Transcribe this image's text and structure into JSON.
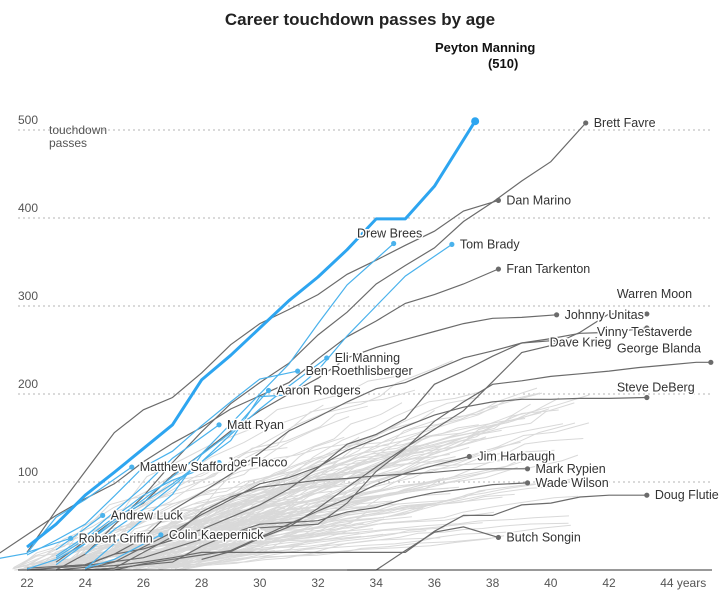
{
  "chart_data": {
    "type": "line",
    "title": "Career touchdown passes by age",
    "ylabel": "touchdown passes",
    "xlabel": "years",
    "xlim": [
      21.8,
      45.5
    ],
    "ylim": [
      0,
      540
    ],
    "xticks": [
      {
        "value": 22,
        "label": "22"
      },
      {
        "value": 24,
        "label": "24"
      },
      {
        "value": 26,
        "label": "26"
      },
      {
        "value": 28,
        "label": "28"
      },
      {
        "value": 30,
        "label": "30"
      },
      {
        "value": 32,
        "label": "32"
      },
      {
        "value": 34,
        "label": "34"
      },
      {
        "value": 36,
        "label": "36"
      },
      {
        "value": 38,
        "label": "38"
      },
      {
        "value": 40,
        "label": "40"
      },
      {
        "value": 42,
        "label": "42"
      },
      {
        "value": 44,
        "label": "44 years"
      }
    ],
    "yticks": [
      {
        "value": 100,
        "label": "100"
      },
      {
        "value": 200,
        "label": "200"
      },
      {
        "value": 300,
        "label": "300"
      },
      {
        "value": 400,
        "label": "400"
      },
      {
        "value": 500,
        "label": "500"
      }
    ],
    "y_unit_label": [
      "touchdown",
      "passes"
    ],
    "grid": true,
    "colors": {
      "highlight": "#2da5f0",
      "active": "#4ab2ec",
      "retired": "#6b6b6b",
      "background": "#d6d6d6"
    },
    "highlight": {
      "name": "Peyton Manning",
      "value_label": "(510)",
      "x": [
        22,
        23,
        24,
        25,
        26,
        27,
        28,
        29,
        30,
        31,
        32,
        33,
        34,
        35,
        36,
        37.4
      ],
      "y": [
        26,
        52,
        85,
        111,
        138,
        165,
        216,
        244,
        275,
        306,
        333,
        364,
        399,
        399,
        436,
        510
      ]
    },
    "series": [
      {
        "name": "Brett Favre",
        "group": "retired",
        "x": [
          22,
          23,
          24,
          25,
          26,
          27,
          28,
          29,
          30,
          31,
          32,
          33,
          34,
          35,
          36,
          37,
          38,
          39,
          40,
          41.2
        ],
        "y": [
          0,
          0,
          18,
          51,
          84,
          122,
          157,
          189,
          213,
          235,
          267,
          293,
          325,
          346,
          366,
          396,
          418,
          442,
          464,
          508
        ]
      },
      {
        "name": "Dan Marino",
        "group": "retired",
        "x": [
          22,
          23,
          24,
          25,
          26,
          27,
          28,
          29,
          30,
          31,
          32,
          33,
          34,
          35,
          36,
          37,
          38.2
        ],
        "y": [
          20,
          68,
          112,
          156,
          182,
          196,
          224,
          256,
          280,
          296,
          313,
          336,
          352,
          369,
          385,
          408,
          420
        ]
      },
      {
        "name": "Tom Brady",
        "group": "active",
        "x": [
          24,
          25,
          26,
          27,
          28,
          29,
          30,
          31,
          32,
          33,
          34,
          35,
          36.6
        ],
        "y": [
          18,
          46,
          69,
          95,
          123,
          147,
          197,
          199,
          227,
          266,
          300,
          334,
          370
        ]
      },
      {
        "name": "Drew Brees",
        "group": "active",
        "x": [
          22,
          23,
          24,
          25,
          26,
          27,
          28,
          29,
          30,
          31,
          32,
          33,
          34.6
        ],
        "y": [
          1,
          12,
          30,
          57,
          80,
          106,
          132,
          166,
          200,
          234,
          280,
          324,
          371
        ]
      },
      {
        "name": "Fran Tarkenton",
        "group": "retired",
        "x": [
          21,
          22,
          23,
          24,
          25,
          26,
          27,
          28,
          29,
          30,
          31,
          32,
          33,
          34,
          35,
          36,
          37,
          38.2
        ],
        "y": [
          18,
          40,
          62,
          81,
          98,
          123,
          144,
          162,
          183,
          198,
          213,
          240,
          265,
          283,
          303,
          313,
          325,
          342
        ]
      },
      {
        "name": "Johnny Unitas",
        "group": "retired",
        "x": [
          23,
          24,
          25,
          26,
          27,
          28,
          29,
          30,
          31,
          32,
          33,
          34,
          35,
          36,
          37,
          38,
          39,
          40.2
        ],
        "y": [
          9,
          33,
          57,
          76,
          108,
          132,
          158,
          181,
          200,
          218,
          241,
          253,
          262,
          271,
          280,
          286,
          287,
          290
        ]
      },
      {
        "name": "Warren Moon",
        "group": "retired",
        "x": [
          28,
          29,
          30,
          31,
          32,
          33,
          34,
          35,
          36,
          37,
          38,
          39,
          40,
          41,
          42,
          43.3
        ],
        "y": [
          12,
          21,
          36,
          49,
          70,
          94,
          117,
          139,
          160,
          181,
          214,
          247,
          255,
          270,
          291,
          291
        ]
      },
      {
        "name": "Vinny Testaverde",
        "group": "retired",
        "x": [
          24,
          25,
          26,
          27,
          28,
          29,
          30,
          31,
          32,
          33,
          34,
          35,
          36,
          37,
          38,
          39,
          40,
          41,
          42,
          43.3
        ],
        "y": [
          5,
          18,
          24,
          34,
          46,
          60,
          74,
          92,
          116,
          143,
          154,
          172,
          211,
          226,
          243,
          258,
          263,
          269,
          270,
          275
        ]
      },
      {
        "name": "Dave Krieg",
        "group": "retired",
        "x": [
          22,
          23,
          24,
          25,
          26,
          27,
          28,
          29,
          30,
          31,
          32,
          33,
          34,
          35,
          36,
          37,
          38,
          39,
          40.2
        ],
        "y": [
          2,
          4,
          6,
          18,
          36,
          68,
          88,
          109,
          133,
          158,
          174,
          191,
          206,
          213,
          227,
          241,
          249,
          258,
          261
        ]
      },
      {
        "name": "George Blanda",
        "group": "retired",
        "x": [
          22,
          24,
          26,
          28,
          30,
          32,
          33,
          34,
          35,
          36,
          37,
          38,
          39,
          40,
          41,
          42,
          43,
          44,
          45,
          45.5
        ],
        "y": [
          0,
          5,
          14,
          35,
          48,
          52,
          76,
          112,
          138,
          169,
          191,
          211,
          215,
          220,
          223,
          226,
          230,
          233,
          236,
          236
        ]
      },
      {
        "name": "Steve DeBerg",
        "group": "retired",
        "x": [
          24,
          25,
          26,
          27,
          28,
          29,
          30,
          31,
          32,
          33,
          34,
          35,
          36,
          37,
          38,
          39,
          40,
          41,
          42,
          43.3
        ],
        "y": [
          1,
          9,
          26,
          43,
          63,
          80,
          98,
          105,
          117,
          136,
          149,
          163,
          176,
          185,
          191,
          194,
          194,
          195,
          195,
          196
        ]
      },
      {
        "name": "Jim Harbaugh",
        "group": "retired",
        "x": [
          24,
          25,
          26,
          27,
          28,
          29,
          30,
          31,
          32,
          33,
          34,
          35,
          36,
          37.2
        ],
        "y": [
          0,
          0,
          7,
          12,
          17,
          22,
          37,
          52,
          67,
          81,
          97,
          110,
          119,
          129
        ]
      },
      {
        "name": "Mark Rypien",
        "group": "retired",
        "x": [
          24,
          25,
          26,
          27,
          28,
          29,
          30,
          31,
          32,
          33,
          34,
          35,
          36,
          37,
          38,
          39.2
        ],
        "y": [
          0,
          2,
          20,
          38,
          66,
          83,
          94,
          98,
          102,
          104,
          107,
          109,
          111,
          114,
          115,
          115
        ]
      },
      {
        "name": "Wade Wilson",
        "group": "retired",
        "x": [
          23,
          24,
          25,
          26,
          27,
          28,
          29,
          30,
          31,
          32,
          33,
          34,
          35,
          36,
          37,
          38,
          39.2
        ],
        "y": [
          0,
          0,
          2,
          6,
          9,
          27,
          41,
          52,
          54,
          56,
          66,
          71,
          81,
          88,
          92,
          97,
          99
        ]
      },
      {
        "name": "Doug Flutie",
        "group": "retired",
        "x": [
          23,
          24,
          25,
          26,
          27,
          28,
          29,
          30,
          31,
          32,
          33,
          34,
          35,
          36,
          37,
          38,
          39,
          40,
          41,
          42,
          43.3
        ],
        "y": [
          0,
          3,
          5,
          9,
          14,
          20,
          20,
          20,
          20,
          20,
          20,
          20,
          20,
          44,
          62,
          62,
          74,
          76,
          83,
          85,
          85
        ]
      },
      {
        "name": "Butch Songin",
        "group": "retired",
        "x": [
          33,
          34,
          35,
          36,
          37,
          38.2
        ],
        "y": [
          0,
          0,
          22,
          43,
          49,
          37
        ]
      },
      {
        "name": "Eli Manning",
        "group": "active",
        "x": [
          23,
          24,
          25,
          26,
          27,
          28,
          29,
          30,
          31,
          32.3
        ],
        "y": [
          6,
          30,
          54,
          77,
          98,
          123,
          154,
          183,
          209,
          241
        ]
      },
      {
        "name": "Ben Roethlisberger",
        "group": "active",
        "x": [
          22,
          23,
          24,
          25,
          26,
          27,
          28,
          29,
          30,
          31.3
        ],
        "y": [
          17,
          34,
          52,
          84,
          117,
          135,
          164,
          191,
          217,
          226
        ]
      },
      {
        "name": "Aaron Rodgers",
        "group": "active",
        "x": [
          24,
          25,
          26,
          27,
          28,
          29,
          30.3
        ],
        "y": [
          1,
          30,
          58,
          86,
          131,
          156,
          204
        ]
      },
      {
        "name": "Matt Ryan",
        "group": "active",
        "x": [
          23,
          24,
          25,
          26,
          27,
          28.6
        ],
        "y": [
          16,
          38,
          66,
          95,
          127,
          165
        ]
      },
      {
        "name": "Joe Flacco",
        "group": "active",
        "x": [
          23,
          24,
          25,
          26,
          27,
          28.6
        ],
        "y": [
          14,
          35,
          60,
          85,
          102,
          122
        ]
      },
      {
        "name": "Matthew Stafford",
        "group": "active",
        "x": [
          21,
          22,
          23,
          24,
          25.6
        ],
        "y": [
          13,
          19,
          60,
          80,
          117
        ]
      },
      {
        "name": "Andrew Luck",
        "group": "active",
        "x": [
          23,
          24.6
        ],
        "y": [
          23,
          62
        ]
      },
      {
        "name": "Robert Griffin",
        "group": "active",
        "x": [
          22,
          23.5
        ],
        "y": [
          20,
          36
        ]
      },
      {
        "name": "Colin Kaepernick",
        "group": "active",
        "x": [
          24,
          25,
          26.6
        ],
        "y": [
          2,
          12,
          40
        ]
      }
    ],
    "labels": [
      {
        "name": "Peyton Manning",
        "text_key": "highlight"
      },
      {
        "text": "Brett Favre"
      },
      {
        "text": "Dan Marino"
      },
      {
        "text": "Drew Brees"
      },
      {
        "text": "Tom Brady"
      },
      {
        "text": "Fran Tarkenton"
      },
      {
        "text": "Johnny Unitas"
      },
      {
        "text": "Warren Moon"
      },
      {
        "text": "Dave Krieg"
      },
      {
        "text": "Vinny Testaverde"
      },
      {
        "text": "George Blanda"
      },
      {
        "text": "Steve DeBerg"
      },
      {
        "text": "Jim Harbaugh"
      },
      {
        "text": "Mark Rypien"
      },
      {
        "text": "Wade Wilson"
      },
      {
        "text": "Doug Flutie"
      },
      {
        "text": "Butch Songin"
      },
      {
        "text": "Eli Manning"
      },
      {
        "text": "Ben Roethlisberger"
      },
      {
        "text": "Aaron Rodgers"
      },
      {
        "text": "Matt Ryan"
      },
      {
        "text": "Joe Flacco"
      },
      {
        "text": "Matthew Stafford"
      },
      {
        "text": "Andrew Luck"
      },
      {
        "text": "Robert Griffin"
      },
      {
        "text": "Colin Kaepernick"
      }
    ]
  }
}
